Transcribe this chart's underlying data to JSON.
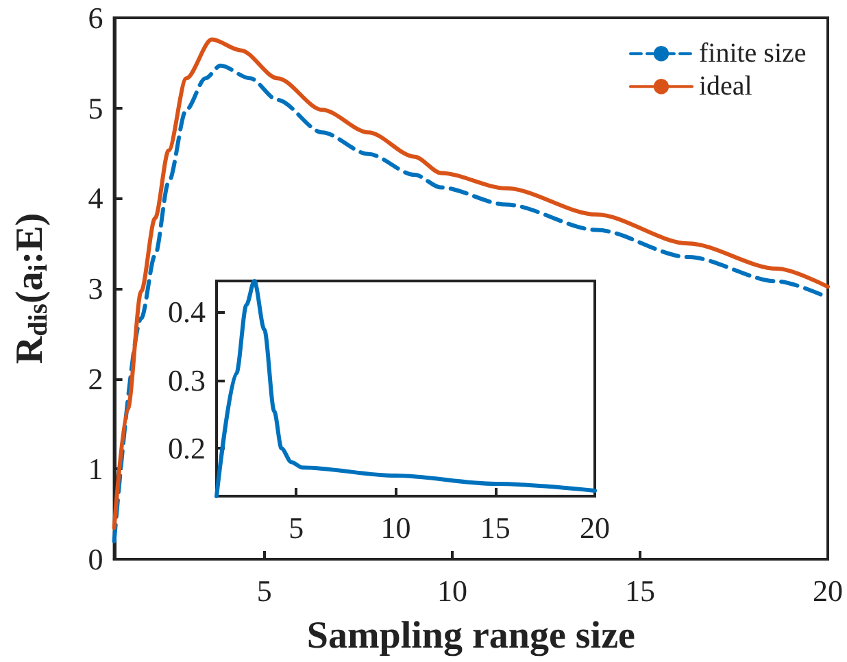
{
  "chart_data": [
    {
      "type": "line",
      "xlabel": "Sampling range size",
      "ylabel": "R$_{dis}$(a$_{i}$:E)",
      "xlim": [
        1,
        20
      ],
      "xticks": [
        5,
        10,
        15,
        20
      ],
      "ylim": [
        0,
        6
      ],
      "yticks": [
        0,
        1,
        2,
        3,
        4,
        5,
        6
      ],
      "legend": "top right",
      "marker": "none",
      "grid": false,
      "series": [
        {
          "name": "finite size",
          "color": "#0072bd",
          "line_style": "dashed",
          "x": [
            1,
            1.72,
            2.09,
            2.45,
            2.92,
            3.43,
            3.83,
            4.62,
            5.35,
            6.54,
            7.77,
            9.0,
            9.7,
            11.44,
            13.84,
            16.27,
            18.65,
            20
          ],
          "values": [
            0.2,
            2.67,
            3.37,
            4.18,
            4.98,
            5.33,
            5.47,
            5.33,
            5.09,
            4.73,
            4.49,
            4.26,
            4.12,
            3.93,
            3.65,
            3.35,
            3.08,
            2.9
          ]
        },
        {
          "name": "ideal",
          "color": "#d95319",
          "line_style": "solid",
          "x": [
            1,
            1.36,
            1.72,
            2.09,
            2.45,
            2.92,
            3.6,
            4.37,
            5.35,
            6.54,
            7.77,
            9.0,
            9.7,
            11.44,
            13.84,
            16.27,
            18.65,
            20
          ],
          "values": [
            0.35,
            1.66,
            2.97,
            3.78,
            4.53,
            5.33,
            5.76,
            5.64,
            5.33,
            4.98,
            4.73,
            4.46,
            4.28,
            4.11,
            3.82,
            3.5,
            3.22,
            3.02
          ]
        }
      ]
    },
    {
      "type": "line",
      "xlim": [
        1,
        20
      ],
      "xticks": [
        5,
        10,
        15,
        20
      ],
      "ylim": [
        0.13,
        0.445
      ],
      "yticks": [
        0.2,
        0.3,
        0.4
      ],
      "marker": "none",
      "grid": false,
      "series": [
        {
          "color": "#0072bd",
          "line_style": "solid",
          "x": [
            1,
            2.0,
            2.5,
            2.9,
            3.4,
            3.9,
            4.26,
            4.75,
            5.3,
            10,
            15,
            20
          ],
          "values": [
            0.13,
            0.31,
            0.41,
            0.445,
            0.374,
            0.254,
            0.2,
            0.18,
            0.172,
            0.16,
            0.148,
            0.138
          ]
        }
      ]
    }
  ]
}
